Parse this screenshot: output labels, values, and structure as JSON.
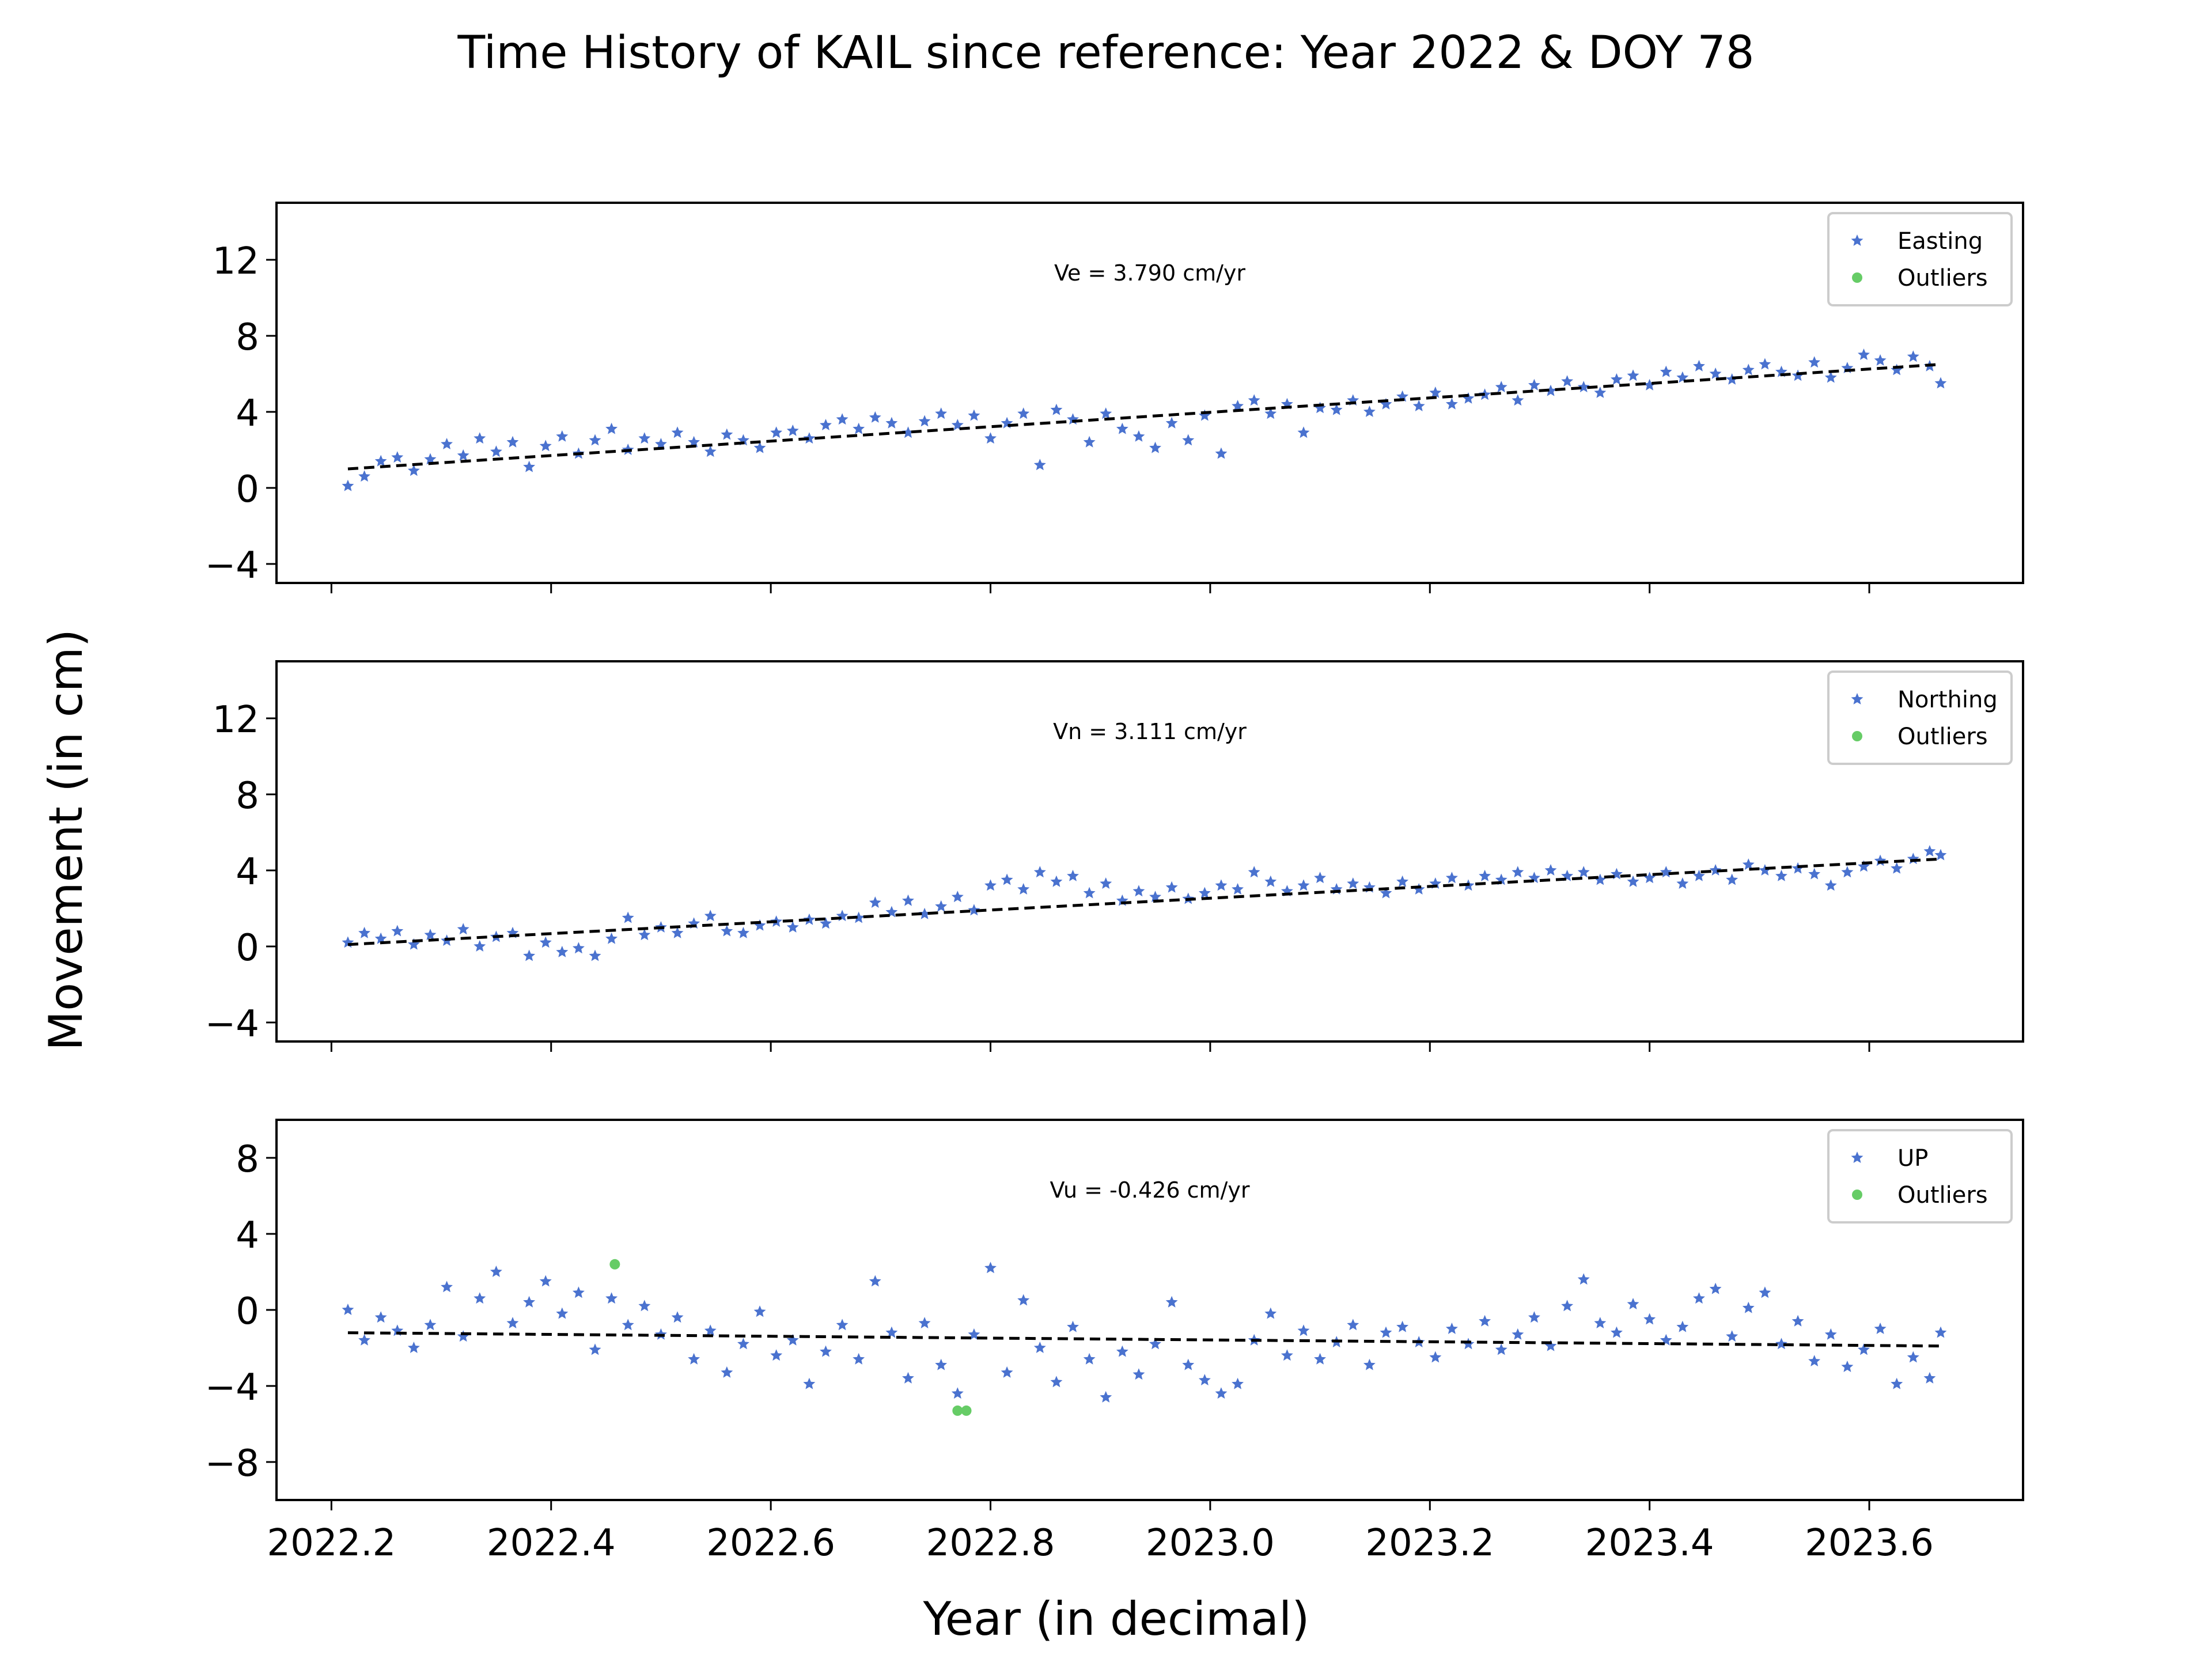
{
  "figure": {
    "title": "Time History of KAIL since reference: Year 2022 & DOY 78",
    "xlabel": "Year (in decimal)",
    "ylabel": "Movement (in cm)",
    "colors": {
      "series": "#4a72cf",
      "outliers": "#66cc66",
      "fit": "#000000",
      "legend_border": "#cccccc"
    }
  },
  "chart_data": [
    {
      "type": "scatter",
      "component": "Easting",
      "xlim": [
        2022.15,
        2023.74
      ],
      "ylim": [
        -5,
        15
      ],
      "yticks": [
        -4,
        0,
        4,
        8,
        12
      ],
      "xticks": [
        2022.2,
        2022.4,
        2022.6,
        2022.8,
        2023.0,
        2023.2,
        2023.4,
        2023.6
      ],
      "xtick_labels_visible": false,
      "annotation": "Ve =  3.790 cm/yr",
      "legend": {
        "placement": "top-right",
        "entries": [
          "Easting",
          "Outliers"
        ]
      },
      "trend": {
        "x": [
          2022.215,
          2023.665
        ],
        "y": [
          1.0,
          6.5
        ]
      },
      "series": [
        {
          "name": "Easting",
          "marker": "star",
          "x": [
            2022.215,
            2022.23,
            2022.245,
            2022.26,
            2022.275,
            2022.29,
            2022.305,
            2022.32,
            2022.335,
            2022.35,
            2022.365,
            2022.38,
            2022.395,
            2022.41,
            2022.425,
            2022.44,
            2022.455,
            2022.47,
            2022.485,
            2022.5,
            2022.515,
            2022.53,
            2022.545,
            2022.56,
            2022.575,
            2022.59,
            2022.605,
            2022.62,
            2022.635,
            2022.65,
            2022.665,
            2022.68,
            2022.695,
            2022.71,
            2022.725,
            2022.74,
            2022.755,
            2022.77,
            2022.785,
            2022.8,
            2022.815,
            2022.83,
            2022.845,
            2022.86,
            2022.875,
            2022.89,
            2022.905,
            2022.92,
            2022.935,
            2022.95,
            2022.965,
            2022.98,
            2022.995,
            2023.01,
            2023.025,
            2023.04,
            2023.055,
            2023.07,
            2023.085,
            2023.1,
            2023.115,
            2023.13,
            2023.145,
            2023.16,
            2023.175,
            2023.19,
            2023.205,
            2023.22,
            2023.235,
            2023.25,
            2023.265,
            2023.28,
            2023.295,
            2023.31,
            2023.325,
            2023.34,
            2023.355,
            2023.37,
            2023.385,
            2023.4,
            2023.415,
            2023.43,
            2023.445,
            2023.46,
            2023.475,
            2023.49,
            2023.505,
            2023.52,
            2023.535,
            2023.55,
            2023.565,
            2023.58,
            2023.595,
            2023.61,
            2023.625,
            2023.64,
            2023.655,
            2023.665
          ],
          "y": [
            0.1,
            0.6,
            1.4,
            1.6,
            0.9,
            1.5,
            2.3,
            1.7,
            2.6,
            1.9,
            2.4,
            1.1,
            2.2,
            2.7,
            1.8,
            2.5,
            3.1,
            2.0,
            2.6,
            2.3,
            2.9,
            2.4,
            1.9,
            2.8,
            2.5,
            2.1,
            2.9,
            3.0,
            2.6,
            3.3,
            3.6,
            3.1,
            3.7,
            3.4,
            2.9,
            3.5,
            3.9,
            3.3,
            3.8,
            2.6,
            3.4,
            3.9,
            1.2,
            4.1,
            3.6,
            2.4,
            3.9,
            3.1,
            2.7,
            2.1,
            3.4,
            2.5,
            3.8,
            1.8,
            4.3,
            4.6,
            3.9,
            4.4,
            2.9,
            4.2,
            4.1,
            4.6,
            4.0,
            4.4,
            4.8,
            4.3,
            5.0,
            4.4,
            4.7,
            4.9,
            5.3,
            4.6,
            5.4,
            5.1,
            5.6,
            5.3,
            5.0,
            5.7,
            5.9,
            5.4,
            6.1,
            5.8,
            6.4,
            6.0,
            5.7,
            6.2,
            6.5,
            6.1,
            5.9,
            6.6,
            5.8,
            6.3,
            7.0,
            6.7,
            6.2,
            6.9,
            6.4,
            5.5
          ]
        },
        {
          "name": "Outliers",
          "marker": "circle",
          "x": [],
          "y": []
        }
      ]
    },
    {
      "type": "scatter",
      "component": "Northing",
      "xlim": [
        2022.15,
        2023.74
      ],
      "ylim": [
        -5,
        15
      ],
      "yticks": [
        -4,
        0,
        4,
        8,
        12
      ],
      "xticks": [
        2022.2,
        2022.4,
        2022.6,
        2022.8,
        2023.0,
        2023.2,
        2023.4,
        2023.6
      ],
      "xtick_labels_visible": false,
      "annotation": "Vn =  3.111 cm/yr",
      "legend": {
        "placement": "top-right",
        "entries": [
          "Northing",
          "Outliers"
        ]
      },
      "trend": {
        "x": [
          2022.215,
          2023.665
        ],
        "y": [
          0.1,
          4.6
        ]
      },
      "series": [
        {
          "name": "Northing",
          "marker": "star",
          "x": [
            2022.215,
            2022.23,
            2022.245,
            2022.26,
            2022.275,
            2022.29,
            2022.305,
            2022.32,
            2022.335,
            2022.35,
            2022.365,
            2022.38,
            2022.395,
            2022.41,
            2022.425,
            2022.44,
            2022.455,
            2022.47,
            2022.485,
            2022.5,
            2022.515,
            2022.53,
            2022.545,
            2022.56,
            2022.575,
            2022.59,
            2022.605,
            2022.62,
            2022.635,
            2022.65,
            2022.665,
            2022.68,
            2022.695,
            2022.71,
            2022.725,
            2022.74,
            2022.755,
            2022.77,
            2022.785,
            2022.8,
            2022.815,
            2022.83,
            2022.845,
            2022.86,
            2022.875,
            2022.89,
            2022.905,
            2022.92,
            2022.935,
            2022.95,
            2022.965,
            2022.98,
            2022.995,
            2023.01,
            2023.025,
            2023.04,
            2023.055,
            2023.07,
            2023.085,
            2023.1,
            2023.115,
            2023.13,
            2023.145,
            2023.16,
            2023.175,
            2023.19,
            2023.205,
            2023.22,
            2023.235,
            2023.25,
            2023.265,
            2023.28,
            2023.295,
            2023.31,
            2023.325,
            2023.34,
            2023.355,
            2023.37,
            2023.385,
            2023.4,
            2023.415,
            2023.43,
            2023.445,
            2023.46,
            2023.475,
            2023.49,
            2023.505,
            2023.52,
            2023.535,
            2023.55,
            2023.565,
            2023.58,
            2023.595,
            2023.61,
            2023.625,
            2023.64,
            2023.655,
            2023.665
          ],
          "y": [
            0.2,
            0.7,
            0.4,
            0.8,
            0.1,
            0.6,
            0.3,
            0.9,
            0.0,
            0.5,
            0.7,
            -0.5,
            0.2,
            -0.3,
            -0.1,
            -0.5,
            0.4,
            1.5,
            0.6,
            1.0,
            0.7,
            1.2,
            1.6,
            0.8,
            0.7,
            1.1,
            1.3,
            1.0,
            1.4,
            1.2,
            1.6,
            1.5,
            2.3,
            1.8,
            2.4,
            1.7,
            2.1,
            2.6,
            1.9,
            3.2,
            3.5,
            3.0,
            3.9,
            3.4,
            3.7,
            2.8,
            3.3,
            2.4,
            2.9,
            2.6,
            3.1,
            2.5,
            2.8,
            3.2,
            3.0,
            3.9,
            3.4,
            2.9,
            3.2,
            3.6,
            3.0,
            3.3,
            3.1,
            2.8,
            3.4,
            3.0,
            3.3,
            3.6,
            3.2,
            3.7,
            3.5,
            3.9,
            3.6,
            4.0,
            3.7,
            3.9,
            3.5,
            3.8,
            3.4,
            3.6,
            3.9,
            3.3,
            3.7,
            4.0,
            3.5,
            4.3,
            4.0,
            3.7,
            4.1,
            3.8,
            3.2,
            3.9,
            4.2,
            4.5,
            4.1,
            4.6,
            5.0,
            4.8
          ]
        },
        {
          "name": "Outliers",
          "marker": "circle",
          "x": [],
          "y": []
        }
      ]
    },
    {
      "type": "scatter",
      "component": "UP",
      "xlim": [
        2022.15,
        2023.74
      ],
      "ylim": [
        -10,
        10
      ],
      "yticks": [
        -8,
        -4,
        0,
        4,
        8
      ],
      "xticks": [
        2022.2,
        2022.4,
        2022.6,
        2022.8,
        2023.0,
        2023.2,
        2023.4,
        2023.6
      ],
      "xtick_labels": [
        "2022.2",
        "2022.4",
        "2022.6",
        "2022.8",
        "2023.0",
        "2023.2",
        "2023.4",
        "2023.6"
      ],
      "xtick_labels_visible": true,
      "annotation": "Vu = -0.426 cm/yr",
      "legend": {
        "placement": "top-right",
        "entries": [
          "UP",
          "Outliers"
        ]
      },
      "trend": {
        "x": [
          2022.215,
          2023.665
        ],
        "y": [
          -1.2,
          -1.9
        ]
      },
      "series": [
        {
          "name": "UP",
          "marker": "star",
          "x": [
            2022.215,
            2022.23,
            2022.245,
            2022.26,
            2022.275,
            2022.29,
            2022.305,
            2022.32,
            2022.335,
            2022.35,
            2022.365,
            2022.38,
            2022.395,
            2022.41,
            2022.425,
            2022.44,
            2022.455,
            2022.47,
            2022.485,
            2022.5,
            2022.515,
            2022.53,
            2022.545,
            2022.56,
            2022.575,
            2022.59,
            2022.605,
            2022.62,
            2022.635,
            2022.65,
            2022.665,
            2022.68,
            2022.695,
            2022.71,
            2022.725,
            2022.74,
            2022.755,
            2022.77,
            2022.785,
            2022.8,
            2022.815,
            2022.83,
            2022.845,
            2022.86,
            2022.875,
            2022.89,
            2022.905,
            2022.92,
            2022.935,
            2022.95,
            2022.965,
            2022.98,
            2022.995,
            2023.01,
            2023.025,
            2023.04,
            2023.055,
            2023.07,
            2023.085,
            2023.1,
            2023.115,
            2023.13,
            2023.145,
            2023.16,
            2023.175,
            2023.19,
            2023.205,
            2023.22,
            2023.235,
            2023.25,
            2023.265,
            2023.28,
            2023.295,
            2023.31,
            2023.325,
            2023.34,
            2023.355,
            2023.37,
            2023.385,
            2023.4,
            2023.415,
            2023.43,
            2023.445,
            2023.46,
            2023.475,
            2023.49,
            2023.505,
            2023.52,
            2023.535,
            2023.55,
            2023.565,
            2023.58,
            2023.595,
            2023.61,
            2023.625,
            2023.64,
            2023.655,
            2023.665
          ],
          "y": [
            0.0,
            -1.6,
            -0.4,
            -1.1,
            -2.0,
            -0.8,
            1.2,
            -1.4,
            0.6,
            2.0,
            -0.7,
            0.4,
            1.5,
            -0.2,
            0.9,
            -2.1,
            0.6,
            -0.8,
            0.2,
            -1.3,
            -0.4,
            -2.6,
            -1.1,
            -3.3,
            -1.8,
            -0.1,
            -2.4,
            -1.6,
            -3.9,
            -2.2,
            -0.8,
            -2.6,
            1.5,
            -1.2,
            -3.6,
            -0.7,
            -2.9,
            -4.4,
            -1.3,
            2.2,
            -3.3,
            0.5,
            -2.0,
            -3.8,
            -0.9,
            -2.6,
            -4.6,
            -2.2,
            -3.4,
            -1.8,
            0.4,
            -2.9,
            -3.7,
            -4.4,
            -3.9,
            -1.6,
            -0.2,
            -2.4,
            -1.1,
            -2.6,
            -1.7,
            -0.8,
            -2.9,
            -1.2,
            -0.9,
            -1.7,
            -2.5,
            -1.0,
            -1.8,
            -0.6,
            -2.1,
            -1.3,
            -0.4,
            -1.9,
            0.2,
            1.6,
            -0.7,
            -1.2,
            0.3,
            -0.5,
            -1.6,
            -0.9,
            0.6,
            1.1,
            -1.4,
            0.1,
            0.9,
            -1.8,
            -0.6,
            -2.7,
            -1.3,
            -3.0,
            -2.1,
            -1.0,
            -3.9,
            -2.5,
            -3.6,
            -1.2
          ]
        },
        {
          "name": "Outliers",
          "marker": "circle",
          "x": [
            2022.458,
            2022.77,
            2022.778
          ],
          "y": [
            2.4,
            -5.3,
            -5.3
          ]
        }
      ]
    }
  ]
}
